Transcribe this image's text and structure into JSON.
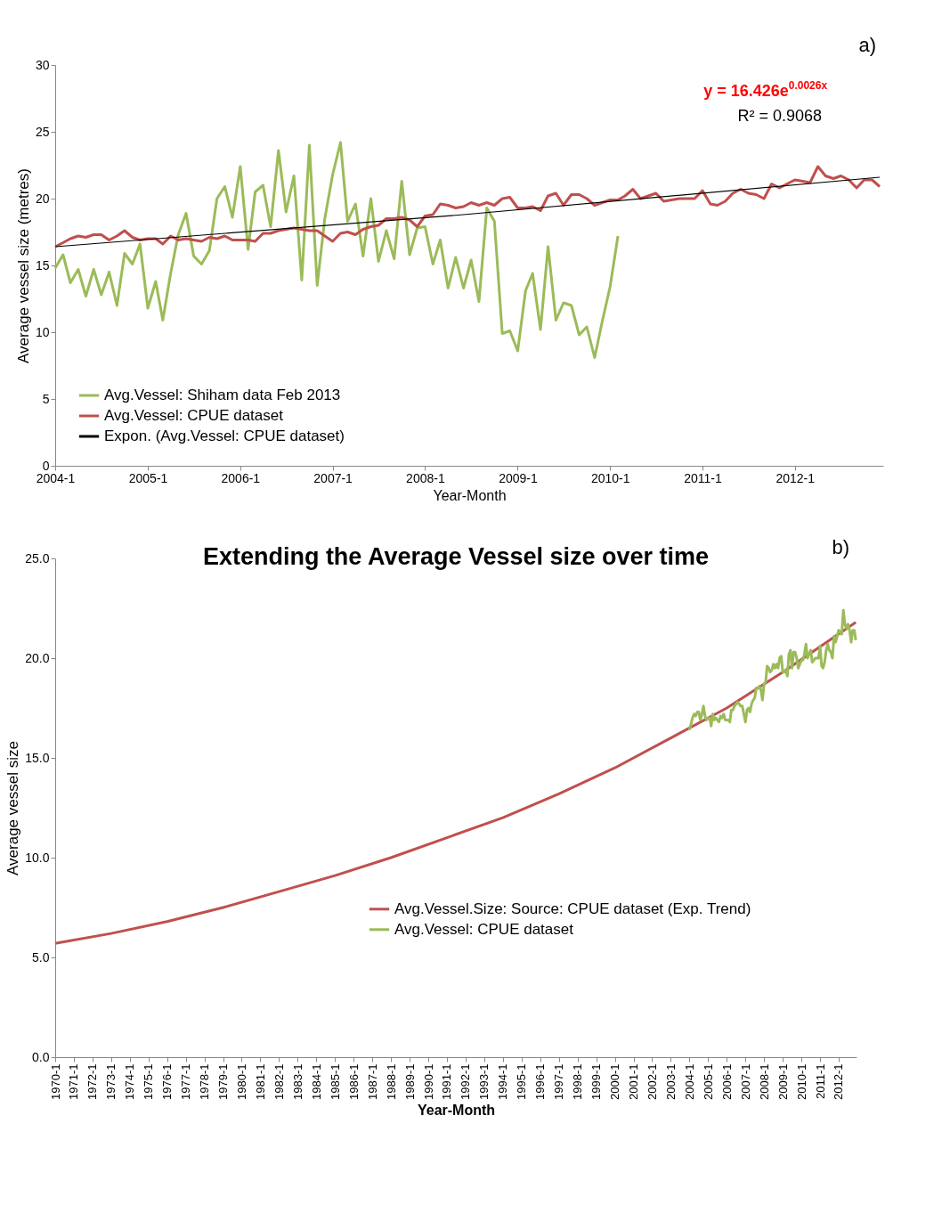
{
  "chart_data": [
    {
      "type": "line",
      "xlabel": "Year-Month",
      "ylabel": "Average vessel size (metres)",
      "ylim": [
        0,
        30
      ],
      "yticks": [
        0,
        5,
        10,
        15,
        20,
        25,
        30
      ],
      "xlim": [
        "2004-01",
        "2012-12-15"
      ],
      "xticks": [
        {
          "value": "2004-01",
          "label": "2004-1"
        },
        {
          "value": "2005-01",
          "label": "2005-1"
        },
        {
          "value": "2006-01",
          "label": "2006-1"
        },
        {
          "value": "2007-01",
          "label": "2007-1"
        },
        {
          "value": "2008-01",
          "label": "2008-1"
        },
        {
          "value": "2009-01",
          "label": "2009-1"
        },
        {
          "value": "2010-01",
          "label": "2010-1"
        },
        {
          "value": "2011-01",
          "label": "2011-1"
        },
        {
          "value": "2012-01",
          "label": "2012-1"
        }
      ],
      "grid": false,
      "legend": "bottom left",
      "marker": "none",
      "line_style": "solid",
      "annotations": [
        "a)",
        "y = 16.426e$^{0.0026x}$",
        "R² = 0.9068"
      ],
      "series": [
        {
          "name": "Avg.Vessel: Shiham data Feb 2013",
          "color": "#9bbb59",
          "x": [
            "2004-01",
            "2004-02",
            "2004-03",
            "2004-04",
            "2004-05",
            "2004-06",
            "2004-07",
            "2004-08",
            "2004-09",
            "2004-10",
            "2004-11",
            "2004-12",
            "2005-01",
            "2005-02",
            "2005-03",
            "2005-04",
            "2005-05",
            "2005-06",
            "2005-07",
            "2005-08",
            "2005-09",
            "2005-10",
            "2005-11",
            "2005-12",
            "2006-01",
            "2006-02",
            "2006-03",
            "2006-04",
            "2006-05",
            "2006-06",
            "2006-07",
            "2006-08",
            "2006-09",
            "2006-10",
            "2006-11",
            "2006-12",
            "2007-01",
            "2007-02",
            "2007-03",
            "2007-04",
            "2007-05",
            "2007-06",
            "2007-07",
            "2007-08",
            "2007-09",
            "2007-10",
            "2007-11",
            "2007-12",
            "2008-01",
            "2008-02",
            "2008-03",
            "2008-04",
            "2008-05",
            "2008-06",
            "2008-07",
            "2008-08",
            "2008-09",
            "2008-10",
            "2008-11",
            "2008-12",
            "2009-01",
            "2009-02",
            "2009-03",
            "2009-04",
            "2009-05",
            "2009-06",
            "2009-07",
            "2009-08",
            "2009-09",
            "2009-10",
            "2009-11",
            "2009-12",
            "2010-01",
            "2010-02"
          ],
          "values": [
            14.8,
            15.8,
            13.7,
            14.7,
            12.7,
            14.7,
            12.8,
            14.5,
            12.0,
            15.9,
            15.1,
            16.6,
            11.8,
            13.8,
            10.9,
            14.4,
            17.3,
            18.9,
            15.7,
            15.1,
            16.1,
            20.0,
            20.9,
            18.6,
            22.4,
            16.2,
            20.5,
            21.0,
            17.9,
            23.6,
            19.0,
            21.7,
            13.9,
            24.0,
            13.5,
            18.5,
            21.8,
            24.2,
            18.3,
            19.6,
            15.7,
            20.0,
            15.3,
            17.6,
            15.5,
            21.3,
            15.8,
            17.8,
            17.9,
            15.1,
            16.9,
            13.3,
            15.6,
            13.3,
            15.4,
            12.3,
            19.3,
            18.3,
            9.9,
            10.1,
            8.6,
            13.1,
            14.4,
            10.2,
            16.4,
            10.9,
            12.2,
            12.0,
            9.8,
            10.4,
            8.1,
            10.8,
            13.4,
            17.2
          ]
        },
        {
          "name": "Avg.Vessel: CPUE dataset",
          "color": "#c0504d",
          "x": [
            "2004-01",
            "2004-02",
            "2004-03",
            "2004-04",
            "2004-05",
            "2004-06",
            "2004-07",
            "2004-08",
            "2004-09",
            "2004-10",
            "2004-11",
            "2004-12",
            "2005-01",
            "2005-02",
            "2005-03",
            "2005-04",
            "2005-05",
            "2005-06",
            "2005-07",
            "2005-08",
            "2005-09",
            "2005-10",
            "2005-11",
            "2005-12",
            "2006-01",
            "2006-02",
            "2006-03",
            "2006-04",
            "2006-05",
            "2006-06",
            "2006-07",
            "2006-08",
            "2006-09",
            "2006-10",
            "2006-11",
            "2006-12",
            "2007-01",
            "2007-02",
            "2007-03",
            "2007-04",
            "2007-05",
            "2007-06",
            "2007-07",
            "2007-08",
            "2007-09",
            "2007-10",
            "2007-11",
            "2007-12",
            "2008-01",
            "2008-02",
            "2008-03",
            "2008-04",
            "2008-05",
            "2008-06",
            "2008-07",
            "2008-08",
            "2008-09",
            "2008-10",
            "2008-11",
            "2008-12",
            "2009-01",
            "2009-02",
            "2009-03",
            "2009-04",
            "2009-05",
            "2009-06",
            "2009-07",
            "2009-08",
            "2009-09",
            "2009-10",
            "2009-11",
            "2009-12",
            "2010-01",
            "2010-02",
            "2010-03",
            "2010-04",
            "2010-05",
            "2010-06",
            "2010-07",
            "2010-08",
            "2010-09",
            "2010-10",
            "2010-11",
            "2010-12",
            "2011-01",
            "2011-02",
            "2011-03",
            "2011-04",
            "2011-05",
            "2011-06",
            "2011-07",
            "2011-08",
            "2011-09",
            "2011-10",
            "2011-11",
            "2011-12",
            "2012-01",
            "2012-02",
            "2012-03",
            "2012-04",
            "2012-05",
            "2012-06",
            "2012-07",
            "2012-08",
            "2012-09",
            "2012-10",
            "2012-11",
            "2012-12"
          ],
          "values": [
            16.4,
            16.7,
            17.0,
            17.2,
            17.1,
            17.3,
            17.3,
            16.9,
            17.2,
            17.6,
            17.1,
            16.9,
            17.0,
            17.0,
            16.6,
            17.2,
            16.9,
            17.0,
            16.9,
            16.8,
            17.1,
            17.0,
            17.2,
            16.9,
            16.9,
            16.9,
            16.8,
            17.4,
            17.4,
            17.6,
            17.7,
            17.8,
            17.7,
            17.6,
            17.6,
            17.2,
            16.8,
            17.4,
            17.5,
            17.3,
            17.7,
            17.9,
            18.0,
            18.5,
            18.5,
            18.6,
            18.4,
            17.9,
            18.7,
            18.8,
            19.6,
            19.5,
            19.3,
            19.4,
            19.7,
            19.5,
            19.7,
            19.5,
            20.0,
            20.1,
            19.3,
            19.3,
            19.4,
            19.1,
            20.2,
            20.4,
            19.5,
            20.3,
            20.3,
            20.0,
            19.5,
            19.7,
            19.9,
            19.9,
            20.2,
            20.7,
            20.0,
            20.2,
            20.4,
            19.8,
            19.9,
            20.0,
            20.0,
            20.0,
            20.6,
            19.6,
            19.5,
            19.8,
            20.4,
            20.7,
            20.4,
            20.3,
            20.0,
            21.1,
            20.8,
            21.1,
            21.4,
            21.3,
            21.2,
            22.4,
            21.7,
            21.5,
            21.7,
            21.4,
            20.8,
            21.4,
            21.4,
            20.9
          ]
        },
        {
          "name": "Expon. (Avg.Vessel: CPUE dataset)",
          "color": "#000000",
          "x": [
            "2004-01",
            "2008-06",
            "2012-12"
          ],
          "values": [
            16.4,
            18.8,
            21.6
          ]
        }
      ]
    },
    {
      "type": "line",
      "title": "Extending the Average Vessel size over time",
      "xlabel": "Year-Month",
      "ylabel": "Average vessel size",
      "ylim": [
        0,
        25
      ],
      "yticks": [
        {
          "value": 0,
          "label": "0.0"
        },
        {
          "value": 5,
          "label": "5.0"
        },
        {
          "value": 10,
          "label": "10.0"
        },
        {
          "value": 15,
          "label": "15.0"
        },
        {
          "value": 20,
          "label": "20.0"
        },
        {
          "value": 25,
          "label": "25.0"
        }
      ],
      "xlim": [
        "1970-01",
        "2012-12-15"
      ],
      "xticks": [
        {
          "value": "1970-01",
          "label": "1970-1"
        },
        {
          "value": "1971-01",
          "label": "1971-1"
        },
        {
          "value": "1972-01",
          "label": "1972-1"
        },
        {
          "value": "1973-01",
          "label": "1973-1"
        },
        {
          "value": "1974-01",
          "label": "1974-1"
        },
        {
          "value": "1975-01",
          "label": "1975-1"
        },
        {
          "value": "1976-01",
          "label": "1976-1"
        },
        {
          "value": "1977-01",
          "label": "1977-1"
        },
        {
          "value": "1978-01",
          "label": "1978-1"
        },
        {
          "value": "1979-01",
          "label": "1979-1"
        },
        {
          "value": "1980-01",
          "label": "1980-1"
        },
        {
          "value": "1981-01",
          "label": "1981-1"
        },
        {
          "value": "1982-01",
          "label": "1982-1"
        },
        {
          "value": "1983-01",
          "label": "1983-1"
        },
        {
          "value": "1984-01",
          "label": "1984-1"
        },
        {
          "value": "1985-01",
          "label": "1985-1"
        },
        {
          "value": "1986-01",
          "label": "1986-1"
        },
        {
          "value": "1987-01",
          "label": "1987-1"
        },
        {
          "value": "1988-01",
          "label": "1988-1"
        },
        {
          "value": "1989-01",
          "label": "1989-1"
        },
        {
          "value": "1990-01",
          "label": "1990-1"
        },
        {
          "value": "1991-01",
          "label": "1991-1"
        },
        {
          "value": "1992-01",
          "label": "1992-1"
        },
        {
          "value": "1993-01",
          "label": "1993-1"
        },
        {
          "value": "1994-01",
          "label": "1994-1"
        },
        {
          "value": "1995-01",
          "label": "1995-1"
        },
        {
          "value": "1996-01",
          "label": "1996-1"
        },
        {
          "value": "1997-01",
          "label": "1997-1"
        },
        {
          "value": "1998-01",
          "label": "1998-1"
        },
        {
          "value": "1999-01",
          "label": "1999-1"
        },
        {
          "value": "2000-01",
          "label": "2000-1"
        },
        {
          "value": "2001-01",
          "label": "2001-1"
        },
        {
          "value": "2002-01",
          "label": "2002-1"
        },
        {
          "value": "2003-01",
          "label": "2003-1"
        },
        {
          "value": "2004-01",
          "label": "2004-1"
        },
        {
          "value": "2005-01",
          "label": "2005-1"
        },
        {
          "value": "2006-01",
          "label": "2006-1"
        },
        {
          "value": "2007-01",
          "label": "2007-1"
        },
        {
          "value": "2008-01",
          "label": "2008-1"
        },
        {
          "value": "2009-01",
          "label": "2009-1"
        },
        {
          "value": "2010-01",
          "label": "2010-1"
        },
        {
          "value": "2011-01",
          "label": "2011-1"
        },
        {
          "value": "2012-01",
          "label": "2012-1"
        }
      ],
      "grid": false,
      "legend": "bottom",
      "marker": "none",
      "line_style": "solid",
      "annotations": [
        "b)"
      ],
      "series": [
        {
          "name": "Avg.Vessel.Size: Source: CPUE dataset (Exp. Trend)",
          "color": "#c0504d",
          "x": [
            "1970-01",
            "1973-01",
            "1976-01",
            "1979-01",
            "1982-01",
            "1985-01",
            "1988-01",
            "1991-01",
            "1994-01",
            "1997-01",
            "2000-01",
            "2003-01",
            "2006-01",
            "2009-01",
            "2012-12"
          ],
          "values": [
            5.7,
            6.2,
            6.8,
            7.5,
            8.3,
            9.1,
            10.0,
            11.0,
            12.0,
            13.2,
            14.5,
            16.0,
            17.5,
            19.3,
            21.8
          ]
        },
        {
          "name": "Avg.Vessel: CPUE dataset",
          "color": "#9bbb59",
          "x": [
            "2004-01",
            "2004-02",
            "2004-03",
            "2004-04",
            "2004-05",
            "2004-06",
            "2004-07",
            "2004-08",
            "2004-09",
            "2004-10",
            "2004-11",
            "2004-12",
            "2005-01",
            "2005-02",
            "2005-03",
            "2005-04",
            "2005-05",
            "2005-06",
            "2005-07",
            "2005-08",
            "2005-09",
            "2005-10",
            "2005-11",
            "2005-12",
            "2006-01",
            "2006-02",
            "2006-03",
            "2006-04",
            "2006-05",
            "2006-06",
            "2006-07",
            "2006-08",
            "2006-09",
            "2006-10",
            "2006-11",
            "2006-12",
            "2007-01",
            "2007-02",
            "2007-03",
            "2007-04",
            "2007-05",
            "2007-06",
            "2007-07",
            "2007-08",
            "2007-09",
            "2007-10",
            "2007-11",
            "2007-12",
            "2008-01",
            "2008-02",
            "2008-03",
            "2008-04",
            "2008-05",
            "2008-06",
            "2008-07",
            "2008-08",
            "2008-09",
            "2008-10",
            "2008-11",
            "2008-12",
            "2009-01",
            "2009-02",
            "2009-03",
            "2009-04",
            "2009-05",
            "2009-06",
            "2009-07",
            "2009-08",
            "2009-09",
            "2009-10",
            "2009-11",
            "2009-12",
            "2010-01",
            "2010-02",
            "2010-03",
            "2010-04",
            "2010-05",
            "2010-06",
            "2010-07",
            "2010-08",
            "2010-09",
            "2010-10",
            "2010-11",
            "2010-12",
            "2011-01",
            "2011-02",
            "2011-03",
            "2011-04",
            "2011-05",
            "2011-06",
            "2011-07",
            "2011-08",
            "2011-09",
            "2011-10",
            "2011-11",
            "2011-12",
            "2012-01",
            "2012-02",
            "2012-03",
            "2012-04",
            "2012-05",
            "2012-06",
            "2012-07",
            "2012-08",
            "2012-09",
            "2012-10",
            "2012-11",
            "2012-12"
          ],
          "values": [
            16.4,
            16.7,
            17.0,
            17.2,
            17.1,
            17.3,
            17.3,
            16.9,
            17.2,
            17.6,
            17.1,
            16.9,
            17.0,
            17.0,
            16.6,
            17.2,
            16.9,
            17.0,
            16.9,
            16.8,
            17.1,
            17.0,
            17.2,
            16.9,
            16.9,
            16.9,
            16.8,
            17.4,
            17.4,
            17.6,
            17.7,
            17.8,
            17.7,
            17.6,
            17.6,
            17.2,
            16.8,
            17.4,
            17.5,
            17.3,
            17.7,
            17.9,
            18.0,
            18.5,
            18.5,
            18.6,
            18.4,
            17.9,
            18.7,
            18.8,
            19.6,
            19.5,
            19.3,
            19.4,
            19.7,
            19.5,
            19.7,
            19.5,
            20.0,
            20.1,
            19.3,
            19.3,
            19.4,
            19.1,
            20.2,
            20.4,
            19.5,
            20.3,
            20.3,
            20.0,
            19.5,
            19.7,
            19.9,
            19.9,
            20.2,
            20.7,
            20.0,
            20.2,
            20.4,
            19.8,
            19.9,
            20.0,
            20.0,
            20.0,
            20.6,
            19.6,
            19.5,
            19.8,
            20.4,
            20.7,
            20.4,
            20.3,
            20.0,
            21.1,
            20.8,
            21.1,
            21.4,
            21.3,
            21.2,
            22.4,
            21.7,
            21.5,
            21.7,
            21.4,
            20.8,
            21.4,
            21.4,
            20.9
          ]
        }
      ]
    }
  ]
}
